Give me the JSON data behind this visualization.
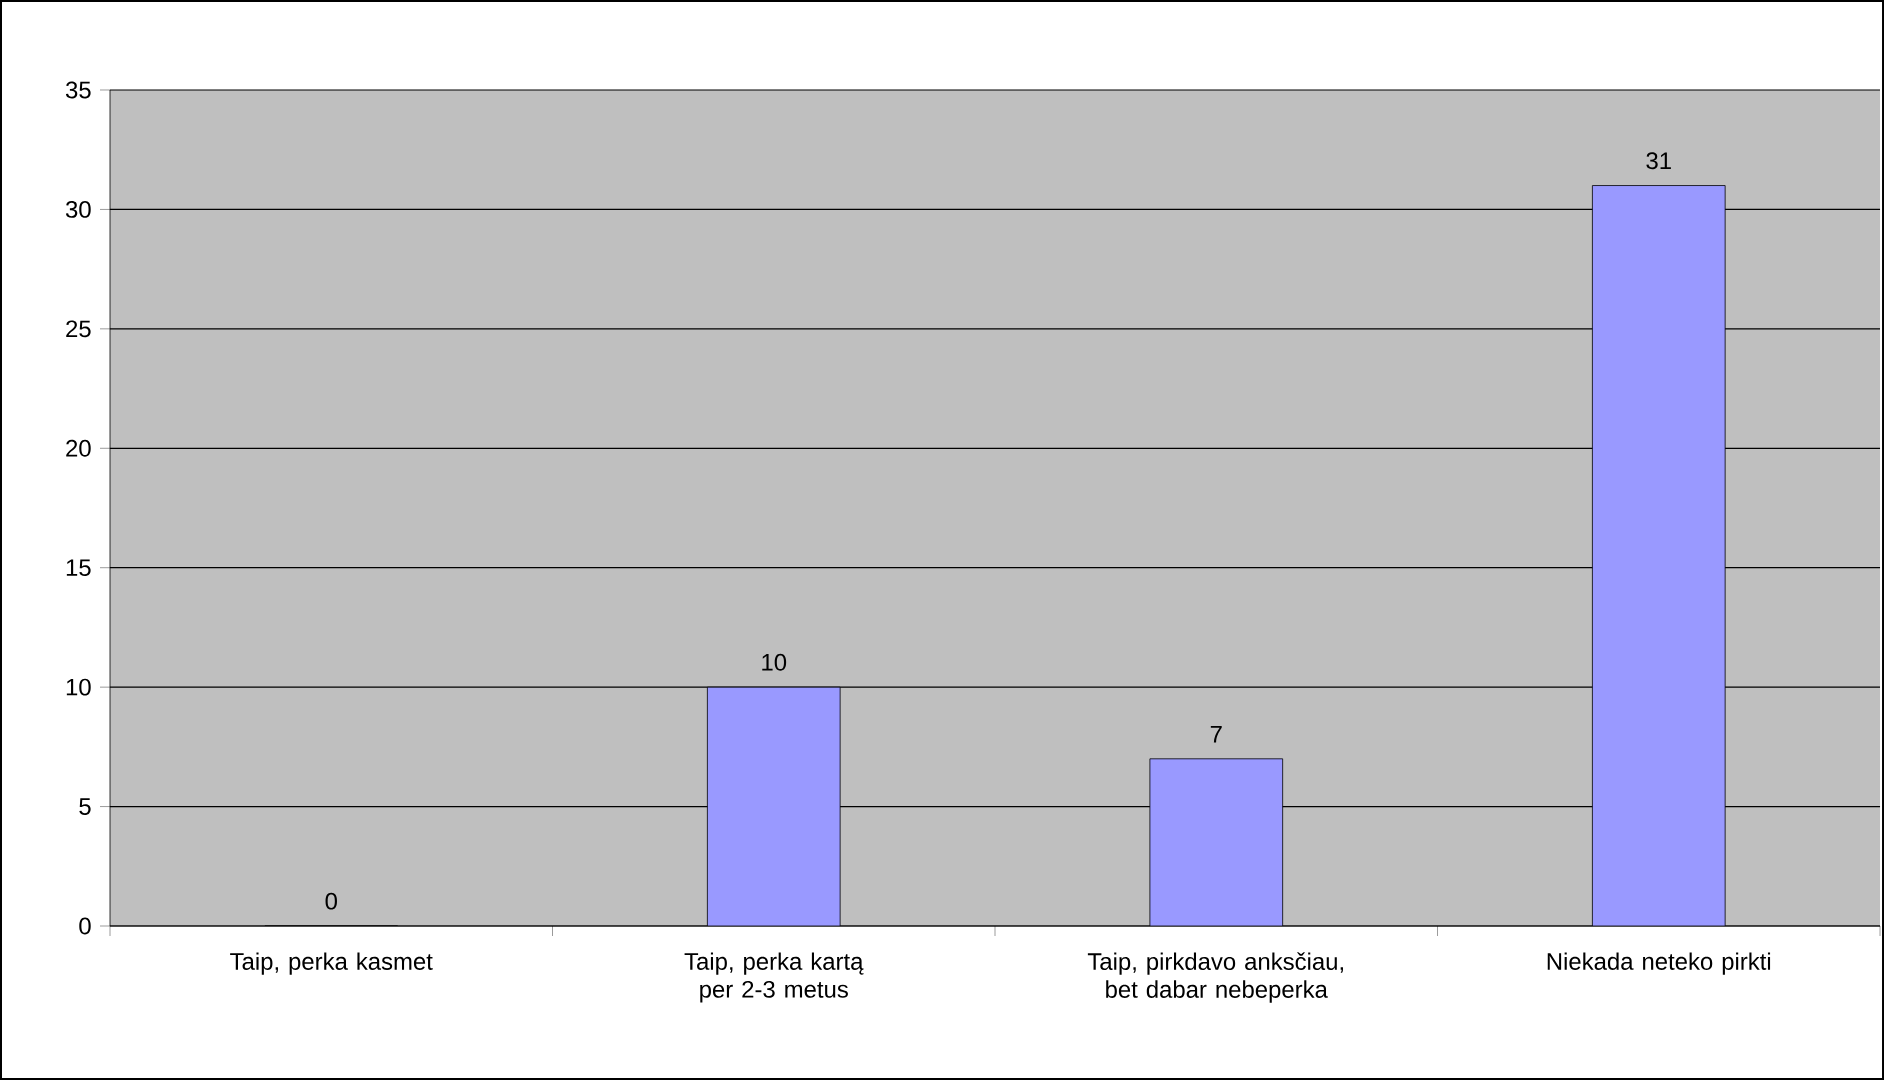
{
  "chart_data": {
    "type": "bar",
    "categories": [
      "Taip, perka kasmet",
      "Taip, perka kartą per 2-3 metus",
      "Taip, pirkdavo anksčiau, bet dabar nebeperka",
      "Niekada neteko pirkti"
    ],
    "values": [
      0,
      10,
      7,
      31
    ],
    "color": "#9999ff",
    "ylim": [
      0,
      35
    ],
    "yticks": [
      0,
      5,
      10,
      15,
      20,
      25,
      30,
      35
    ],
    "grid": "y",
    "data_labels": true
  }
}
